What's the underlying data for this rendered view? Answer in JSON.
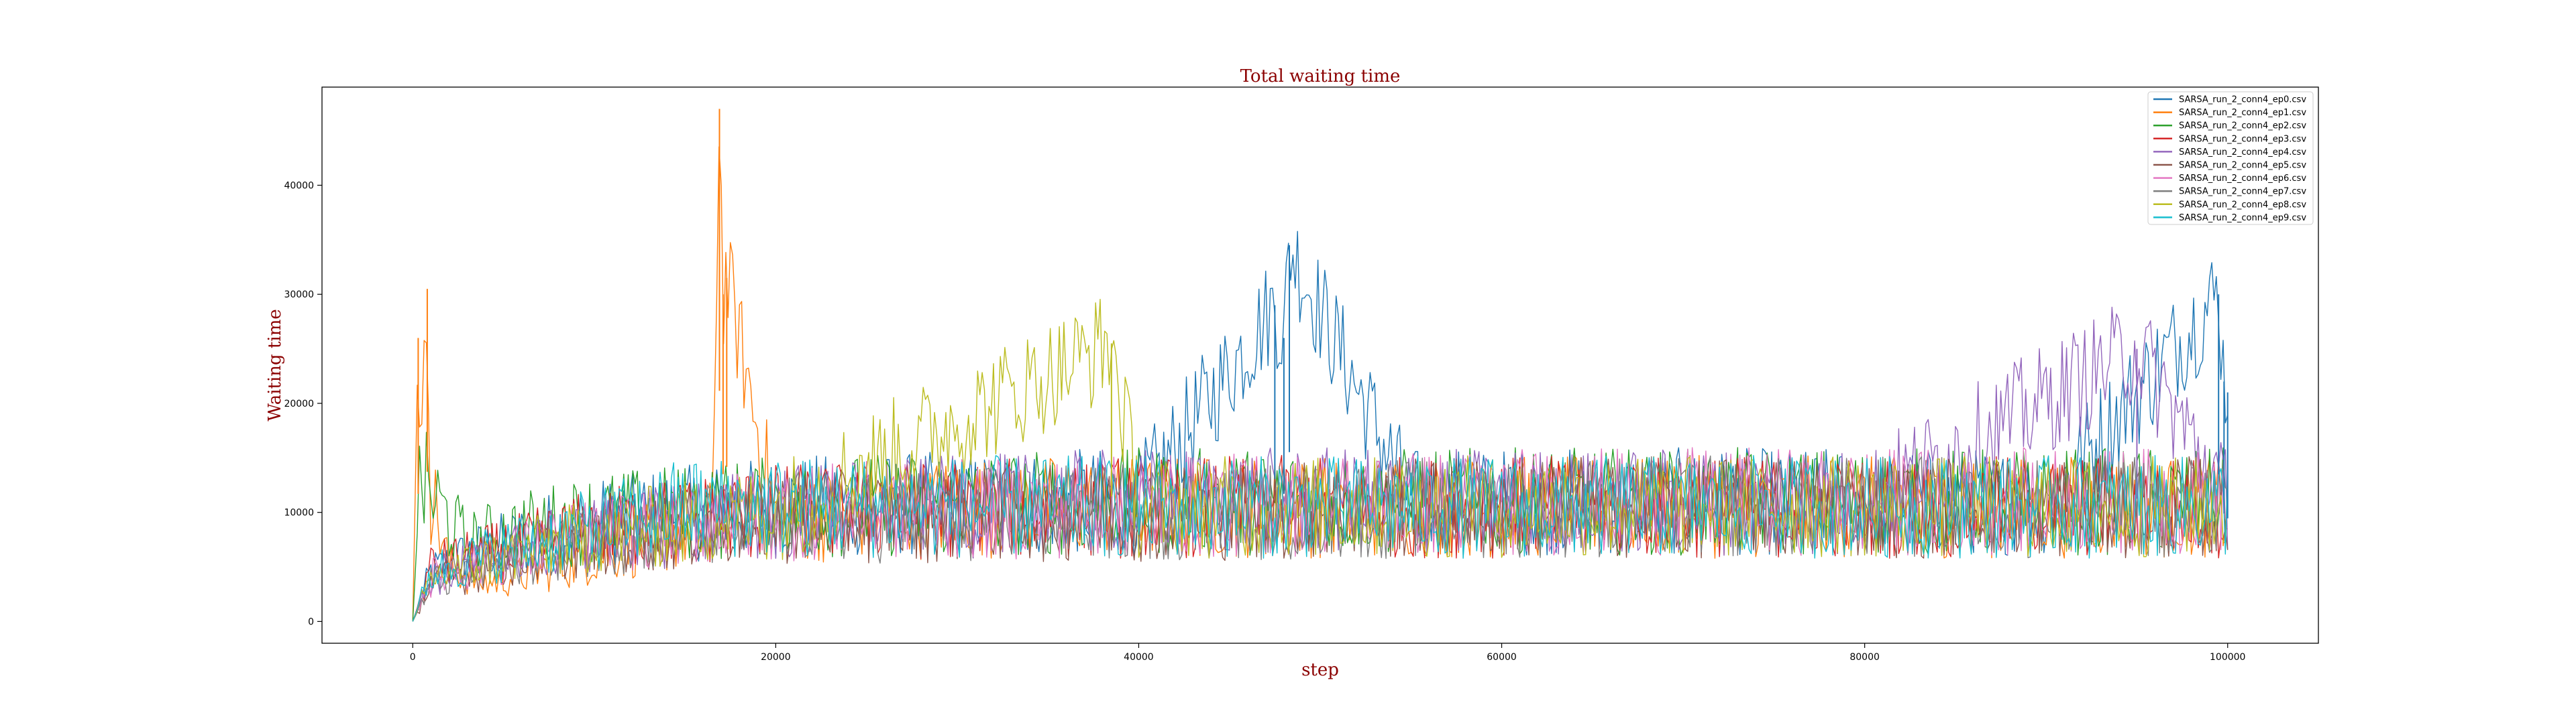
{
  "chart_data": {
    "type": "line",
    "title": "Total waiting time",
    "xlabel": "step",
    "ylabel": "Waiting time",
    "xlim": [
      -5000,
      105000
    ],
    "ylim": [
      -2000,
      49000
    ],
    "xticks": [
      0,
      20000,
      40000,
      60000,
      80000,
      100000
    ],
    "yticks": [
      0,
      10000,
      20000,
      30000,
      40000
    ],
    "grid": false,
    "legend_position": "top-right",
    "description_note": "",
    "series": [
      {
        "name": "SARSA_run_2_conn4_ep0.csv",
        "color": "#1f77b4",
        "x": [
          0,
          1000,
          3000,
          5000,
          8000,
          12000,
          20000,
          30000,
          40000,
          47500,
          48000,
          48300,
          55000,
          70000,
          90000,
          99500,
          99800,
          100000
        ],
        "y": [
          0,
          4500,
          6000,
          7000,
          8500,
          9500,
          10500,
          10800,
          11000,
          29000,
          26000,
          34500,
          11000,
          11000,
          11000,
          30000,
          22000,
          21000
        ]
      },
      {
        "name": "SARSA_run_2_conn4_ep1.csv",
        "color": "#ff7f0e",
        "x": [
          0,
          300,
          500,
          800,
          1000,
          2000,
          4000,
          8000,
          12000,
          16500,
          16900,
          17100,
          17300,
          20000,
          30000,
          50000,
          70000,
          90000,
          100000
        ],
        "y": [
          0,
          26000,
          15000,
          30500,
          12000,
          5000,
          3500,
          5000,
          7000,
          9000,
          47000,
          30000,
          31500,
          9500,
          10500,
          10500,
          10500,
          10500,
          10500
        ]
      },
      {
        "name": "SARSA_run_2_conn4_ep2.csv",
        "color": "#2ca02c",
        "x": [
          0,
          400,
          3000,
          5000,
          10000,
          20000,
          40000,
          60000,
          80000,
          100000
        ],
        "y": [
          0,
          13000,
          7000,
          8000,
          9500,
          10500,
          11000,
          11000,
          11000,
          11000
        ]
      },
      {
        "name": "SARSA_run_2_conn4_ep3.csv",
        "color": "#d62728",
        "x": [
          0,
          1000,
          5000,
          10000,
          20000,
          40000,
          60000,
          80000,
          100000
        ],
        "y": [
          0,
          5000,
          6500,
          8500,
          10000,
          10500,
          10500,
          10500,
          10500
        ]
      },
      {
        "name": "SARSA_run_2_conn4_ep4.csv",
        "color": "#9467bd",
        "x": [
          0,
          1000,
          5000,
          10000,
          20000,
          40000,
          60000,
          80000,
          95000,
          100000
        ],
        "y": [
          0,
          4000,
          6000,
          8000,
          10000,
          11000,
          11000,
          11000,
          25000,
          11000
        ]
      },
      {
        "name": "SARSA_run_2_conn4_ep5.csv",
        "color": "#8c564b",
        "x": [
          0,
          1000,
          5000,
          10000,
          20000,
          40000,
          60000,
          80000,
          100000
        ],
        "y": [
          0,
          3500,
          5500,
          7500,
          9500,
          10000,
          10500,
          10500,
          10500
        ]
      },
      {
        "name": "SARSA_run_2_conn4_ep6.csv",
        "color": "#e377c2",
        "x": [
          0,
          1000,
          5000,
          10000,
          20000,
          40000,
          60000,
          80000,
          100000
        ],
        "y": [
          0,
          4000,
          6000,
          8000,
          10000,
          10500,
          11000,
          11000,
          11000
        ]
      },
      {
        "name": "SARSA_run_2_conn4_ep7.csv",
        "color": "#7f7f7f",
        "x": [
          0,
          1000,
          5000,
          10000,
          20000,
          40000,
          60000,
          80000,
          100000
        ],
        "y": [
          0,
          3500,
          5500,
          7500,
          9500,
          10000,
          10500,
          10500,
          10500
        ]
      },
      {
        "name": "SARSA_run_2_conn4_ep8.csv",
        "color": "#bcbd22",
        "x": [
          0,
          1000,
          5000,
          10000,
          20000,
          38500,
          40000,
          60000,
          80000,
          100000
        ],
        "y": [
          0,
          4000,
          6000,
          8000,
          10000,
          25500,
          10500,
          10500,
          10500,
          10500
        ]
      },
      {
        "name": "SARSA_run_2_conn4_ep9.csv",
        "color": "#17becf",
        "x": [
          0,
          1000,
          5000,
          10000,
          15000,
          20000,
          40000,
          60000,
          80000,
          100000
        ],
        "y": [
          0,
          4500,
          6500,
          8500,
          10500,
          10500,
          10500,
          10500,
          10500,
          10500
        ]
      }
    ]
  }
}
